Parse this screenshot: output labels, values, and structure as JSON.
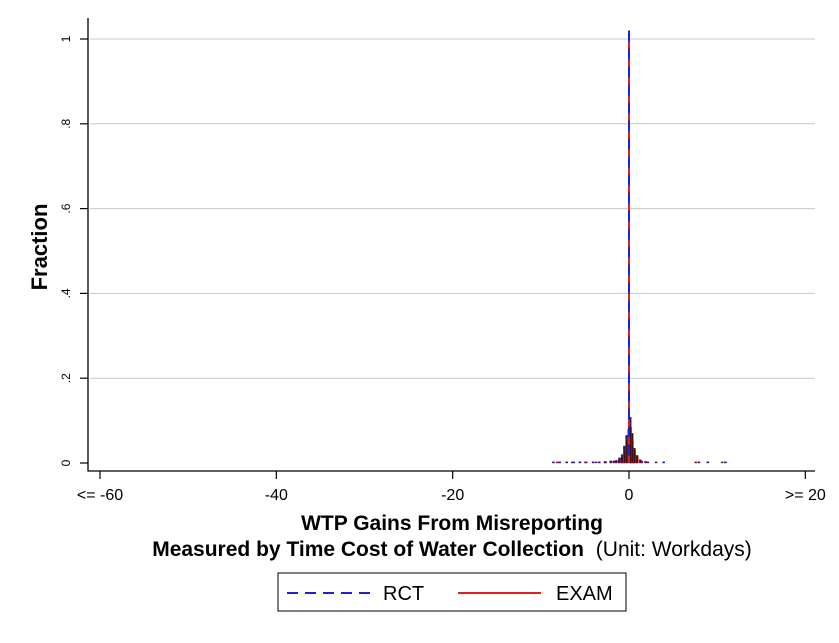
{
  "chart_data": {
    "type": "bar",
    "ylabel": "Fraction",
    "xlabel_line1": "WTP Gains From Misreporting",
    "xlabel_line2_bold": "Measured by Time Cost of Water Collection",
    "xlabel_line2_normal": "(Unit: Workdays)",
    "xlim": [
      -62,
      20
    ],
    "ylim": [
      0,
      1
    ],
    "x_ticks": [
      {
        "value": -60,
        "label": "<= -60"
      },
      {
        "value": -40,
        "label": "-40"
      },
      {
        "value": -20,
        "label": "-20"
      },
      {
        "value": 0,
        "label": "0"
      },
      {
        "value": 20,
        "label": ">= 20"
      }
    ],
    "y_ticks": [
      {
        "value": 0,
        "label": "0"
      },
      {
        "value": 0.2,
        "label": ".2"
      },
      {
        "value": 0.4,
        "label": ".4"
      },
      {
        "value": 0.6,
        "label": ".6"
      },
      {
        "value": 0.8,
        "label": ".8"
      },
      {
        "value": 1,
        "label": "1"
      }
    ],
    "grid": true,
    "legend_position": "bottom",
    "series": [
      {
        "name": "RCT",
        "style": "dashed",
        "color": "#1f1fd6",
        "bins": [
          {
            "x": -8.5,
            "y": 0.002
          },
          {
            "x": -7.8,
            "y": 0.002
          },
          {
            "x": -7.0,
            "y": 0.002
          },
          {
            "x": -6.2,
            "y": 0.002
          },
          {
            "x": -5.5,
            "y": 0.002
          },
          {
            "x": -4.8,
            "y": 0.003
          },
          {
            "x": -4.0,
            "y": 0.003
          },
          {
            "x": -3.3,
            "y": 0.003
          },
          {
            "x": -2.6,
            "y": 0.004
          },
          {
            "x": -2.0,
            "y": 0.005
          },
          {
            "x": -1.4,
            "y": 0.006
          },
          {
            "x": -1.0,
            "y": 0.012
          },
          {
            "x": -0.7,
            "y": 0.02
          },
          {
            "x": -0.45,
            "y": 0.04
          },
          {
            "x": -0.2,
            "y": 0.065
          },
          {
            "x": 0.0,
            "y": 1.0
          },
          {
            "x": 0.2,
            "y": 0.108
          },
          {
            "x": 0.45,
            "y": 0.05
          },
          {
            "x": 0.7,
            "y": 0.025
          },
          {
            "x": 1.0,
            "y": 0.012
          },
          {
            "x": 1.5,
            "y": 0.005
          },
          {
            "x": 2.2,
            "y": 0.003
          },
          {
            "x": 4.0,
            "y": 0.002
          },
          {
            "x": 8.0,
            "y": 0.002
          },
          {
            "x": 9.0,
            "y": 0.002
          },
          {
            "x": 11.0,
            "y": 0.002
          }
        ]
      },
      {
        "name": "EXAM",
        "style": "solid",
        "color": "#e0201f",
        "bins": [
          {
            "x": -8.2,
            "y": 0.002
          },
          {
            "x": -6.5,
            "y": 0.002
          },
          {
            "x": -5.0,
            "y": 0.002
          },
          {
            "x": -3.8,
            "y": 0.003
          },
          {
            "x": -2.8,
            "y": 0.003
          },
          {
            "x": -1.8,
            "y": 0.005
          },
          {
            "x": -1.2,
            "y": 0.008
          },
          {
            "x": -0.85,
            "y": 0.015
          },
          {
            "x": -0.55,
            "y": 0.03
          },
          {
            "x": -0.3,
            "y": 0.055
          },
          {
            "x": -0.1,
            "y": 0.08
          },
          {
            "x": 0.0,
            "y": 1.0
          },
          {
            "x": 0.1,
            "y": 0.085
          },
          {
            "x": 0.3,
            "y": 0.07
          },
          {
            "x": 0.55,
            "y": 0.035
          },
          {
            "x": 0.85,
            "y": 0.018
          },
          {
            "x": 1.2,
            "y": 0.008
          },
          {
            "x": 1.8,
            "y": 0.004
          },
          {
            "x": 3.0,
            "y": 0.002
          },
          {
            "x": 7.5,
            "y": 0.002
          },
          {
            "x": 10.5,
            "y": 0.002
          }
        ]
      }
    ],
    "reference_line_x": 0
  },
  "legend": {
    "items": [
      {
        "label": "RCT",
        "color": "#1f1fd6",
        "style": "dashed"
      },
      {
        "label": "EXAM",
        "color": "#e0201f",
        "style": "solid"
      }
    ]
  }
}
